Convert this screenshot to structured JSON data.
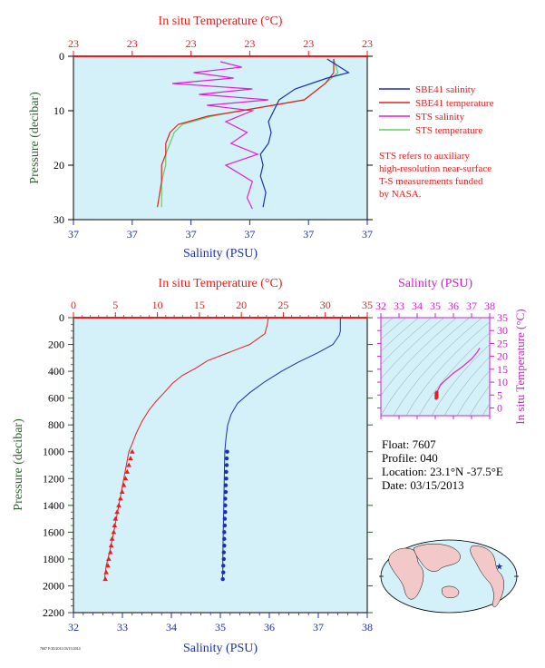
{
  "colors": {
    "plot_bg": "#d4f0f8",
    "salinity": "#1a2fb5",
    "temperature": "#e32020",
    "sts_salinity": "#e020d0",
    "sts_temperature": "#66cc66",
    "pressure_label": "#2e5e2e",
    "ts_axis": "#cc22cc"
  },
  "footer_small_text": "7607 F/20/2013 03/15/2014",
  "float_info": {
    "float": "Float:  7607",
    "profile": "Profile:  040",
    "location": "Location:  23.1°N  -37.5°E",
    "date": "Date:  03/15/2013"
  },
  "legend_note": [
    "STS refers to auxiliary",
    "high-resolution near-surface",
    "T-S measurements funded",
    "by NASA."
  ],
  "chart_data": [
    {
      "type": "line",
      "title": "",
      "x_top_label": "In situ Temperature (°C)",
      "x_top_ticks": [
        "23",
        "23",
        "23",
        "23",
        "23",
        "23"
      ],
      "x_bottom_label": "Salinity (PSU)",
      "x_bottom_ticks": [
        "37",
        "37",
        "37",
        "37",
        "37",
        "37"
      ],
      "ylabel": "Pressure (decibar)",
      "y_ticks": [
        "0",
        "10",
        "20",
        "30"
      ],
      "ylim": [
        0,
        30
      ],
      "legend": {
        "position": "right",
        "entries": [
          "SBE41 salinity",
          "SBE41 temperature",
          "STS salinity",
          "STS temperature"
        ]
      },
      "series": [
        {
          "name": "SBE41 salinity",
          "axis": "salinity",
          "x": [
            37.5,
            37.58,
            37.5,
            37.38,
            37.32,
            37.3,
            37.28,
            37.29,
            37.28,
            37.25,
            37.26,
            37.25,
            37.27,
            37.26
          ],
          "y": [
            0.5,
            3,
            4,
            6,
            8,
            10,
            12,
            14,
            16,
            18,
            20,
            22,
            25,
            27.7
          ]
        },
        {
          "name": "SBE41 temperature",
          "axis": "temperature",
          "x": [
            23.22,
            23.22,
            23.2,
            23.15,
            23.0,
            22.92,
            22.85,
            22.83,
            22.82,
            22.82,
            22.81,
            22.81,
            22.8
          ],
          "y": [
            0.5,
            3,
            5,
            8,
            10,
            11,
            12.5,
            14,
            16,
            18,
            20,
            23,
            27.7
          ]
        },
        {
          "name": "STS salinity",
          "axis": "salinity",
          "x": [
            37.1,
            37.18,
            37.0,
            37.15,
            36.92,
            37.22,
            37.02,
            37.28,
            37.05,
            37.22,
            37.12,
            37.2,
            37.14,
            37.24,
            37.12,
            37.22,
            37.2,
            37.22
          ],
          "y": [
            1,
            2,
            3,
            4,
            5,
            6,
            7,
            8,
            9,
            10,
            12,
            14,
            16,
            18,
            20,
            23,
            26,
            28
          ]
        },
        {
          "name": "STS temperature",
          "axis": "temperature",
          "x": [
            23.22,
            23.23,
            23.2,
            23.15,
            23.0,
            22.93,
            22.86,
            22.84,
            22.83,
            22.82,
            22.82,
            22.81,
            22.81
          ],
          "y": [
            0.5,
            3,
            5,
            8,
            10,
            11,
            12.5,
            14,
            16,
            18,
            20,
            23,
            27.7
          ]
        }
      ]
    },
    {
      "type": "line",
      "title": "",
      "x_top_label": "In situ Temperature (°C)",
      "temperature_lim": [
        0,
        35
      ],
      "x_bottom_label": "Salinity (PSU)",
      "salinity_lim": [
        32,
        38
      ],
      "ylabel": "Pressure (decibar)",
      "ylim": [
        0,
        2200
      ],
      "grid": false,
      "series": [
        {
          "name": "Salinity",
          "axis": "salinity",
          "x": [
            37.45,
            37.45,
            37.43,
            37.3,
            37.0,
            36.6,
            36.25,
            35.9,
            35.6,
            35.35,
            35.22,
            35.15,
            35.12,
            35.1,
            35.09,
            35.08,
            35.07,
            35.06,
            35.05,
            35.05,
            35.04
          ],
          "y": [
            0,
            100,
            130,
            200,
            260,
            330,
            400,
            480,
            560,
            640,
            720,
            800,
            880,
            960,
            1000,
            1200,
            1400,
            1600,
            1800,
            1900,
            1950
          ]
        },
        {
          "name": "Temperature",
          "axis": "temperature",
          "x": [
            23.2,
            23.1,
            22.8,
            21.0,
            18.5,
            16.0,
            14.5,
            13.0,
            11.8,
            10.8,
            9.9,
            9.0,
            8.2,
            7.5,
            7.0,
            6.6,
            6.0,
            5.4,
            4.8,
            4.3,
            3.9,
            3.7
          ],
          "y": [
            0,
            50,
            120,
            200,
            260,
            320,
            380,
            430,
            490,
            560,
            620,
            690,
            770,
            860,
            940,
            1000,
            1200,
            1400,
            1600,
            1750,
            1850,
            1950
          ]
        }
      ],
      "points": {
        "pressure": [
          1000,
          1050,
          1100,
          1150,
          1200,
          1250,
          1300,
          1350,
          1400,
          1450,
          1500,
          1550,
          1600,
          1650,
          1700,
          1750,
          1800,
          1850,
          1900,
          1950
        ],
        "salinity": [
          35.14,
          35.13,
          35.13,
          35.12,
          35.12,
          35.11,
          35.11,
          35.1,
          35.1,
          35.1,
          35.09,
          35.09,
          35.08,
          35.08,
          35.08,
          35.07,
          35.07,
          35.06,
          35.06,
          35.05
        ],
        "temperature": [
          7.0,
          6.8,
          6.6,
          6.4,
          6.2,
          6.0,
          5.8,
          5.6,
          5.4,
          5.2,
          5.0,
          4.9,
          4.8,
          4.6,
          4.5,
          4.4,
          4.2,
          4.1,
          3.9,
          3.8
        ]
      }
    },
    {
      "type": "line",
      "title": "",
      "x_top_label": "Salinity (PSU)",
      "xlim": [
        32,
        38
      ],
      "ylabel_right": "In situ Temperature (°C)",
      "ylim": [
        -3,
        35
      ],
      "series": [
        {
          "name": "T-S",
          "x": [
            35.05,
            35.1,
            35.15,
            35.3,
            35.6,
            36.0,
            36.5,
            37.0,
            37.3,
            37.45
          ],
          "y": [
            3.8,
            5.5,
            7.0,
            9.0,
            11.0,
            13.5,
            16.0,
            19.0,
            21.5,
            23.2
          ]
        }
      ]
    }
  ],
  "map": {
    "marker_lat": 23.1,
    "marker_lon": -37.5
  }
}
